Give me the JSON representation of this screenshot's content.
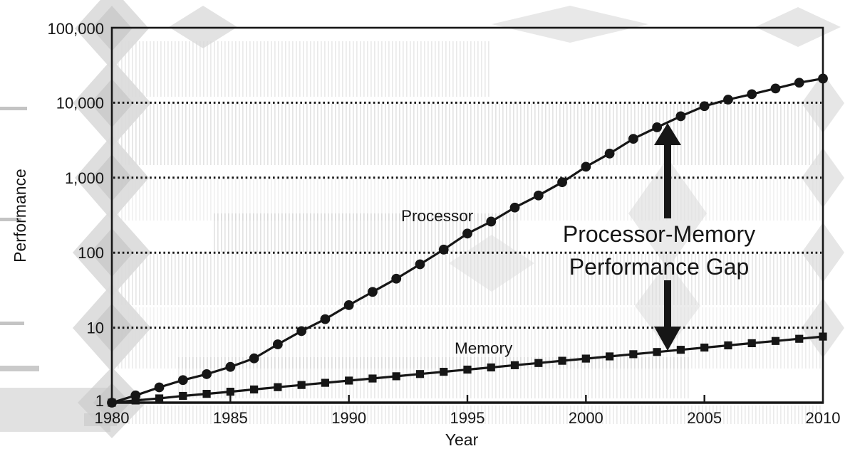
{
  "figure_title": "",
  "chart_data": {
    "type": "line",
    "title": "",
    "xlabel": "Year",
    "ylabel": "Performance",
    "y_scale": "log",
    "xlim": [
      1980,
      2010
    ],
    "ylim": [
      1,
      100000
    ],
    "grid": "horizontal dotted lines at 10, 100, 1,000, 10,000",
    "gridline_values": [
      10,
      100,
      1000,
      10000
    ],
    "x_tick_values": [
      1980,
      1985,
      1990,
      1995,
      2000,
      2005,
      2010
    ],
    "x_tick_labels": [
      "1980",
      "1985",
      "1990",
      "1995",
      "2000",
      "2005",
      "2010"
    ],
    "y_tick_values": [
      1,
      10,
      100,
      1000,
      10000,
      100000
    ],
    "y_tick_labels": [
      "1",
      "10",
      "100",
      "1,000",
      "10,000",
      "100,000"
    ],
    "legend_position": "inline-labels",
    "x": [
      1980,
      1981,
      1982,
      1983,
      1984,
      1985,
      1986,
      1987,
      1988,
      1989,
      1990,
      1991,
      1992,
      1993,
      1994,
      1995,
      1996,
      1997,
      1998,
      1999,
      2000,
      2001,
      2002,
      2003,
      2004,
      2005,
      2006,
      2007,
      2008,
      2009,
      2010
    ],
    "series": [
      {
        "name": "Processor",
        "label": "Processor",
        "marker": "circle",
        "color": "#161616",
        "values": [
          1,
          1.25,
          1.6,
          2.0,
          2.4,
          3.0,
          3.9,
          6.0,
          9.0,
          13,
          20,
          30,
          45,
          70,
          110,
          180,
          260,
          400,
          580,
          870,
          1400,
          2100,
          3300,
          4700,
          6600,
          9000,
          11000,
          13000,
          15500,
          18500,
          21000
        ]
      },
      {
        "name": "Memory",
        "label": "Memory",
        "marker": "square",
        "color": "#161616",
        "values": [
          1.0,
          1.07,
          1.14,
          1.23,
          1.31,
          1.4,
          1.5,
          1.61,
          1.72,
          1.84,
          1.97,
          2.1,
          2.25,
          2.41,
          2.58,
          2.76,
          2.95,
          3.16,
          3.38,
          3.62,
          3.87,
          4.14,
          4.43,
          4.74,
          5.07,
          5.43,
          5.81,
          6.21,
          6.65,
          7.11,
          7.61
        ]
      }
    ],
    "annotation": {
      "lines": [
        "Processor-Memory",
        "Performance Gap"
      ],
      "arrow": {
        "style": "double-headed vertical",
        "at_year": 2003,
        "points_to": "Processor",
        "points_from": "Memory"
      }
    }
  },
  "colors": {
    "ink": "#161616",
    "background": "#ffffff",
    "artifact_gray": "#cfcfcf"
  }
}
